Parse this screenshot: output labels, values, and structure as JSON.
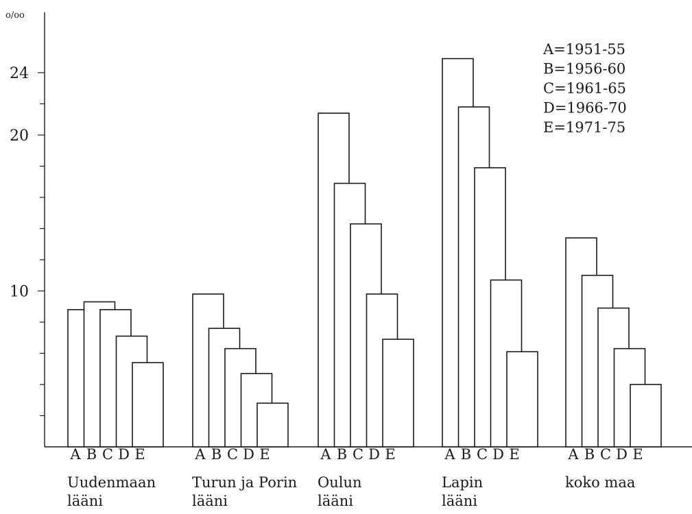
{
  "chart_data": {
    "type": "bar",
    "unit_label": "o/oo",
    "y_tick_labels": [
      "24",
      "20",
      "10"
    ],
    "y_ticks_labeled": [
      24,
      20,
      10
    ],
    "y_ticks_minor": [
      2,
      4,
      6,
      8,
      12,
      14,
      16,
      18,
      22
    ],
    "ylim": [
      0,
      26
    ],
    "series_letters": [
      "A",
      "B",
      "C",
      "D",
      "E"
    ],
    "legend": [
      {
        "key": "A",
        "text": "A=1951-55"
      },
      {
        "key": "B",
        "text": "B=1956-60"
      },
      {
        "key": "C",
        "text": "C=1961-65"
      },
      {
        "key": "D",
        "text": "D=1966-70"
      },
      {
        "key": "E",
        "text": "E=1971-75"
      }
    ],
    "groups": [
      {
        "name_lines": [
          "Uudenmaan",
          "lääni"
        ],
        "values": [
          8.8,
          9.3,
          8.8,
          7.1,
          5.4
        ]
      },
      {
        "name_lines": [
          "Turun ja Porin",
          "lääni"
        ],
        "values": [
          9.8,
          7.6,
          6.3,
          4.7,
          2.8
        ]
      },
      {
        "name_lines": [
          "Oulun",
          "lääni"
        ],
        "values": [
          21.4,
          16.9,
          14.3,
          9.8,
          6.9
        ]
      },
      {
        "name_lines": [
          "Lapin",
          "lääni"
        ],
        "values": [
          24.9,
          21.8,
          17.9,
          10.7,
          6.1
        ]
      },
      {
        "name_lines": [
          "koko maa"
        ],
        "values": [
          13.4,
          11.0,
          8.9,
          6.3,
          4.0
        ]
      }
    ]
  }
}
